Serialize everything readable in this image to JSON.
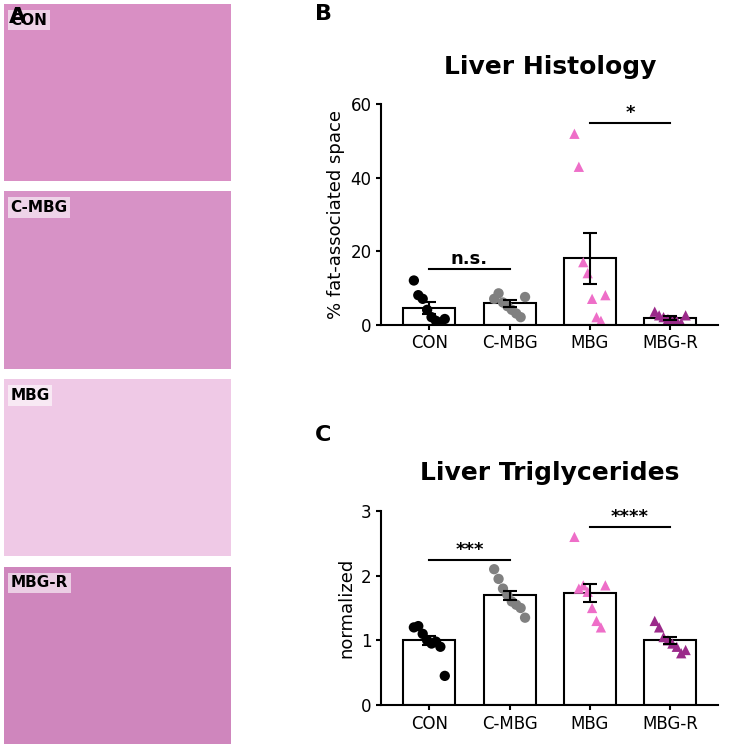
{
  "chart_data": [
    {
      "type": "image_grid",
      "panel": "A",
      "labels": [
        "CON",
        "C-MBG",
        "MBG",
        "MBG-R"
      ]
    },
    {
      "type": "bar",
      "panel": "B",
      "title": "Liver Histology",
      "y_label": "% fat-associated space",
      "categories": [
        "CON",
        "C-MBG",
        "MBG",
        "MBG-R"
      ],
      "values": [
        4.5,
        5.8,
        18,
        1.8
      ],
      "errors": [
        1.7,
        1.0,
        7,
        0.6
      ],
      "colors": [
        "#000000",
        "#808080",
        "#ee6ec8",
        "#9b2a8a"
      ],
      "markers": [
        "circle",
        "circle",
        "triangle",
        "triangle"
      ],
      "points": [
        [
          12,
          8,
          7,
          4,
          2,
          1,
          0.5,
          1.5
        ],
        [
          7,
          8.5,
          6,
          5,
          4,
          3,
          2,
          7.5
        ],
        [
          52,
          43,
          17,
          14,
          7,
          2,
          1,
          8
        ],
        [
          3.5,
          2.5,
          2,
          1.5,
          1,
          1,
          0.5,
          2.5
        ]
      ],
      "significance": [
        {
          "between": [
            "CON",
            "C-MBG"
          ],
          "text": "n.s."
        },
        {
          "between": [
            "MBG",
            "MBG-R"
          ],
          "text": "*"
        }
      ],
      "ylim": [
        0,
        60
      ],
      "yticks": [
        0,
        20,
        40,
        60
      ]
    },
    {
      "type": "bar",
      "panel": "C",
      "title": "Liver Triglycerides",
      "y_label": "normalized",
      "categories": [
        "CON",
        "C-MBG",
        "MBG",
        "MBG-R"
      ],
      "values": [
        1.0,
        1.7,
        1.73,
        1.0
      ],
      "errors": [
        0.07,
        0.07,
        0.14,
        0.05
      ],
      "colors": [
        "#000000",
        "#808080",
        "#ee6ec8",
        "#9b2a8a"
      ],
      "markers": [
        "circle",
        "circle",
        "triangle",
        "triangle"
      ],
      "points": [
        [
          1.2,
          1.22,
          1.1,
          1.0,
          0.95,
          0.98,
          0.9,
          0.45
        ],
        [
          2.1,
          1.95,
          1.8,
          1.7,
          1.6,
          1.55,
          1.5,
          1.35
        ],
        [
          2.6,
          1.8,
          1.85,
          1.75,
          1.5,
          1.3,
          1.2,
          1.85
        ],
        [
          1.3,
          1.2,
          1.05,
          1.0,
          0.95,
          0.9,
          0.8,
          0.85
        ]
      ],
      "significance": [
        {
          "between": [
            "CON",
            "C-MBG"
          ],
          "text": "***"
        },
        {
          "between": [
            "MBG",
            "MBG-R"
          ],
          "text": "****"
        }
      ],
      "ylim": [
        0,
        3
      ],
      "yticks": [
        0,
        1,
        2,
        3
      ]
    }
  ]
}
